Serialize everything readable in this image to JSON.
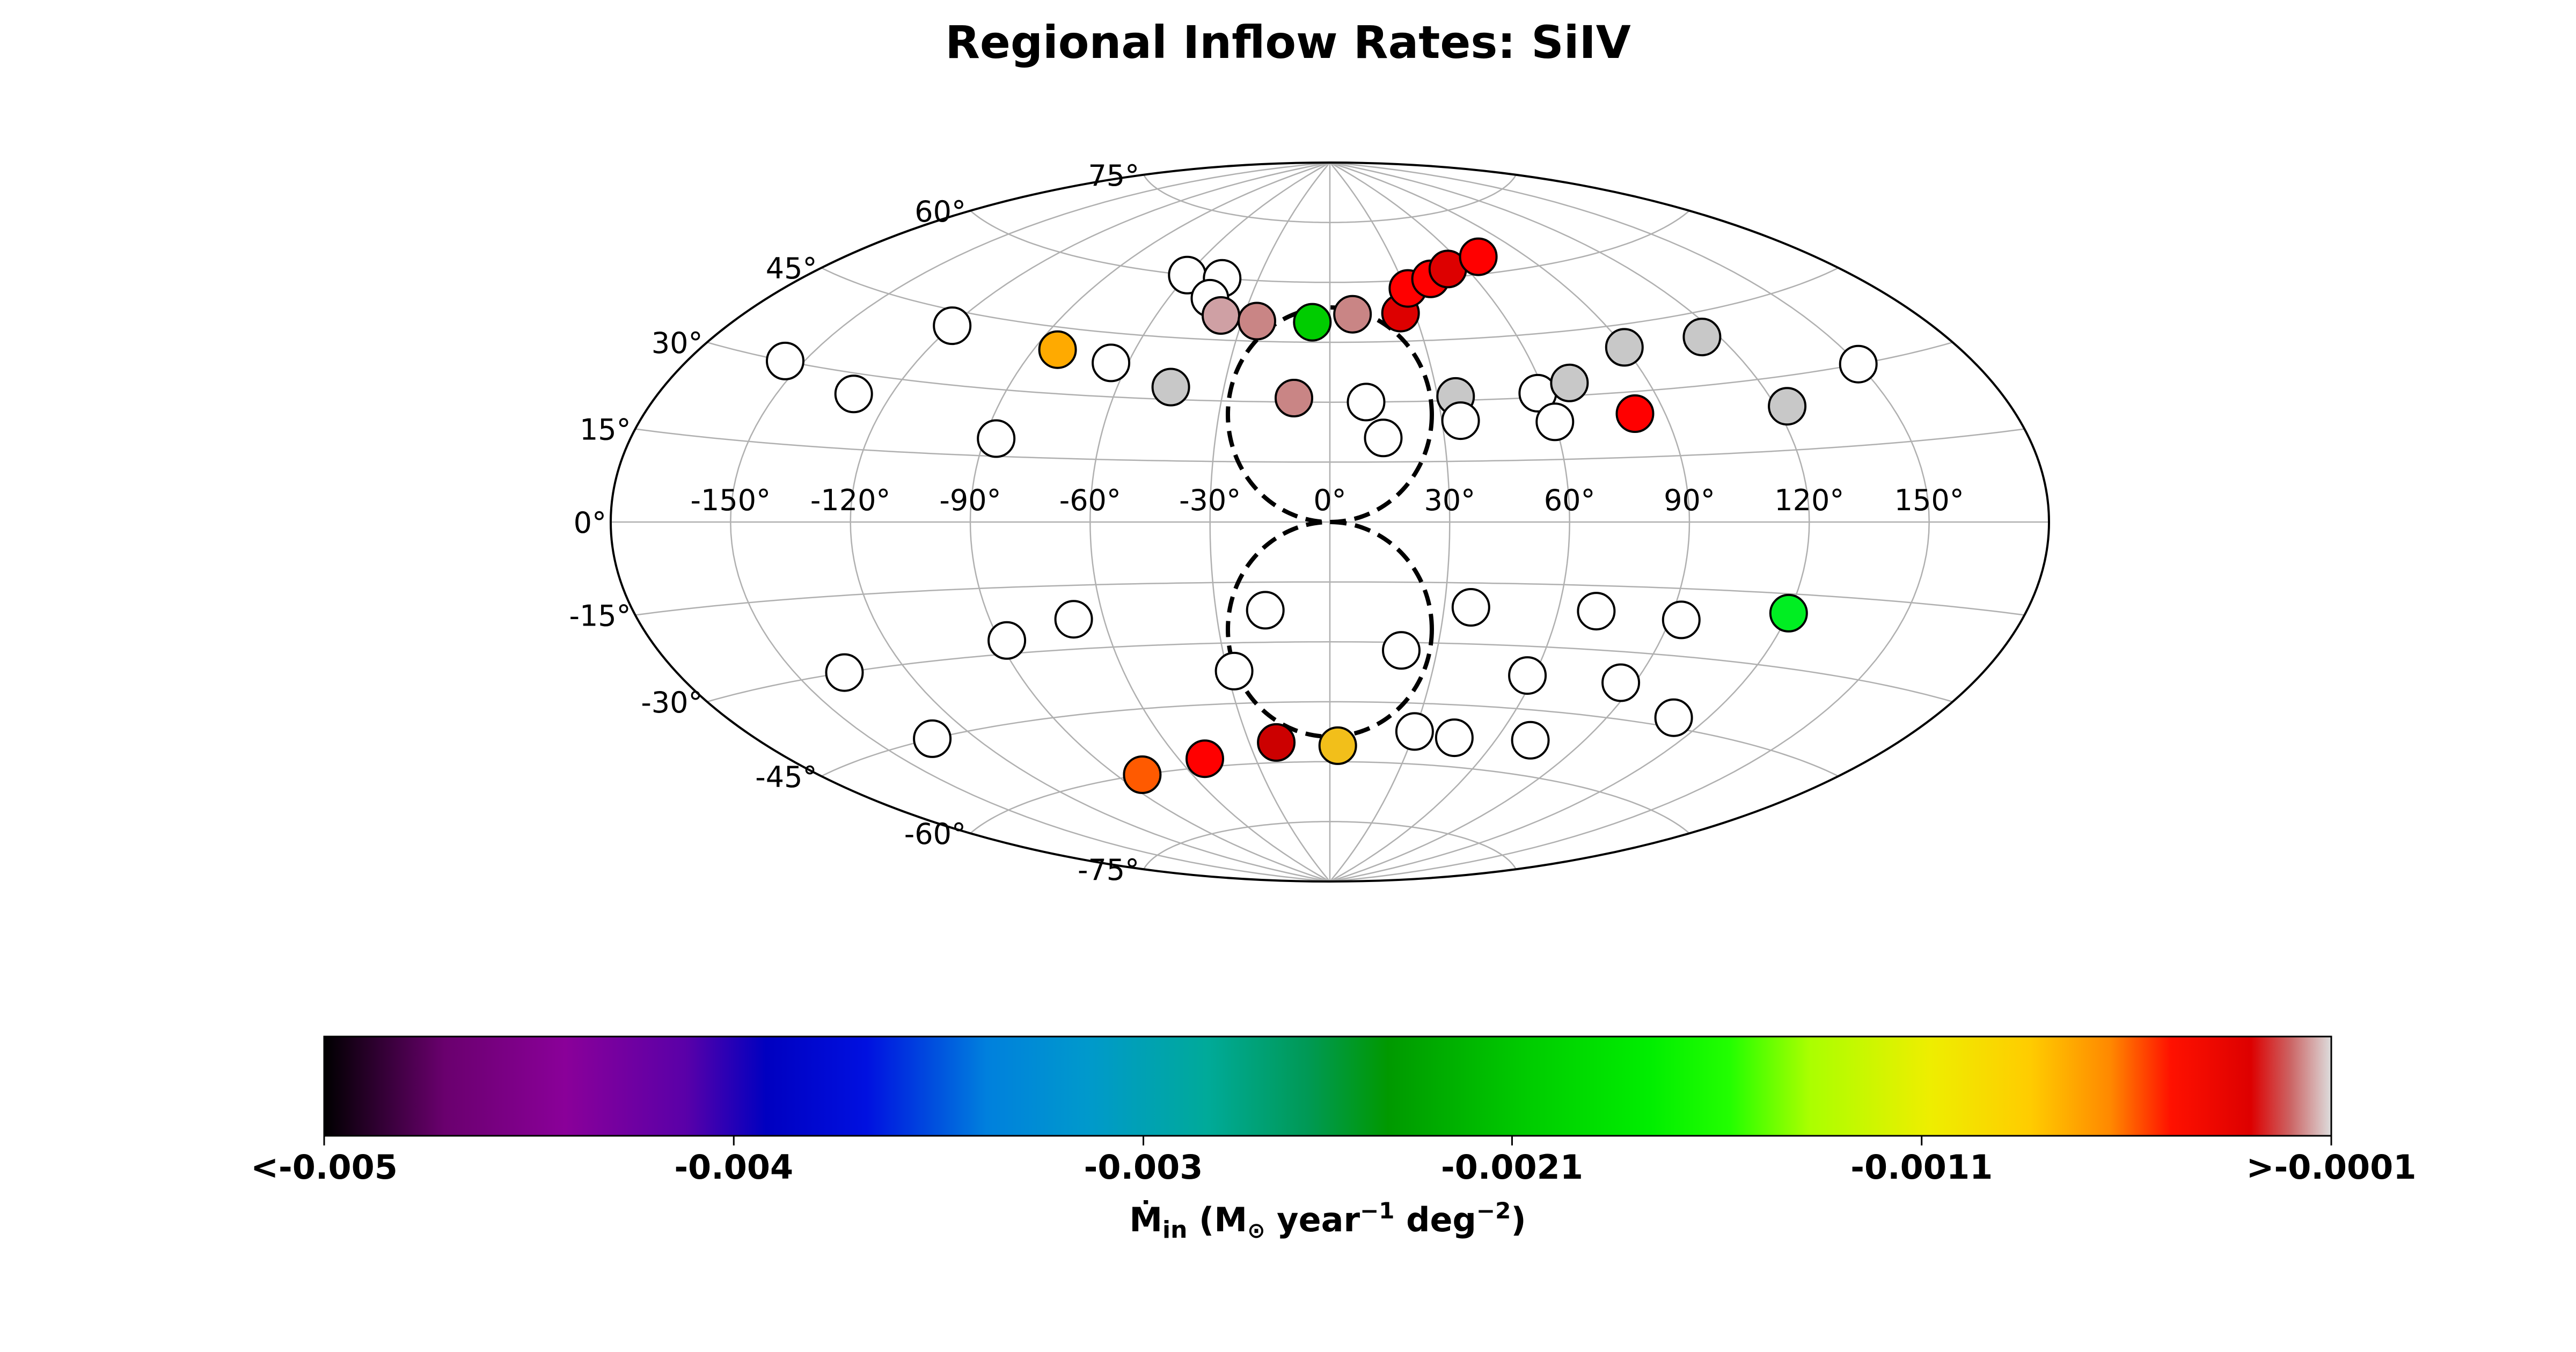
{
  "chart_data": {
    "type": "scatter",
    "projection": "aitoff",
    "title": "Regional Inflow Rates: SiIV",
    "lon_ticks": [
      "-150°",
      "-120°",
      "-90°",
      "-60°",
      "-30°",
      "0°",
      "30°",
      "60°",
      "90°",
      "120°",
      "150°"
    ],
    "lon_tick_values": [
      -150,
      -120,
      -90,
      -60,
      -30,
      0,
      30,
      60,
      90,
      120,
      150
    ],
    "lat_ticks": [
      "-75°",
      "-60°",
      "-45°",
      "-30°",
      "-15°",
      "0°",
      "15°",
      "30°",
      "45°",
      "60°",
      "75°"
    ],
    "lat_tick_values": [
      -75,
      -60,
      -45,
      -30,
      -15,
      0,
      15,
      30,
      45,
      60,
      75
    ],
    "grid": true,
    "lon_range": [
      -180,
      180
    ],
    "lat_range": [
      -90,
      90
    ],
    "points": [
      {
        "lon": -155,
        "lat": 30,
        "color": "#ffffff"
      },
      {
        "lon": -130,
        "lat": 26,
        "color": "#ffffff"
      },
      {
        "lon": -120,
        "lat": 42,
        "color": "#ffffff"
      },
      {
        "lon": -87,
        "lat": 19,
        "color": "#ffffff"
      },
      {
        "lon": -83,
        "lat": 40,
        "color": "#ffaa00"
      },
      {
        "lon": -65,
        "lat": 38,
        "color": "#ffffff"
      },
      {
        "lon": -45,
        "lat": 33,
        "color": "#c8c8c8"
      },
      {
        "lon": -60,
        "lat": 60,
        "color": "#ffffff"
      },
      {
        "lon": -45,
        "lat": 60,
        "color": "#ffffff"
      },
      {
        "lon": -45,
        "lat": 55,
        "color": "#ffffff"
      },
      {
        "lon": -38,
        "lat": 51,
        "color": "#cfa0a4"
      },
      {
        "lon": -25,
        "lat": 50,
        "color": "#c98585"
      },
      {
        "lon": -6,
        "lat": 50,
        "color": "#00cc00"
      },
      {
        "lon": 8,
        "lat": 52,
        "color": "#c98585"
      },
      {
        "lon": -10,
        "lat": 31,
        "color": "#c98585"
      },
      {
        "lon": 10,
        "lat": 30,
        "color": "#ffffff"
      },
      {
        "lon": 14,
        "lat": 21,
        "color": "#ffffff"
      },
      {
        "lon": 25,
        "lat": 52,
        "color": "#dd0000"
      },
      {
        "lon": 31,
        "lat": 58,
        "color": "#ff0000"
      },
      {
        "lon": 42,
        "lat": 60,
        "color": "#ff0000"
      },
      {
        "lon": 52,
        "lat": 62,
        "color": "#dd0000"
      },
      {
        "lon": 70,
        "lat": 64,
        "color": "#ff0000"
      },
      {
        "lon": 35,
        "lat": 31,
        "color": "#c8c8c8"
      },
      {
        "lon": 35,
        "lat": 25,
        "color": "#ffffff"
      },
      {
        "lon": 58,
        "lat": 31,
        "color": "#ffffff"
      },
      {
        "lon": 60,
        "lat": 24,
        "color": "#ffffff"
      },
      {
        "lon": 68,
        "lat": 33,
        "color": "#c8c8c8"
      },
      {
        "lon": 82,
        "lat": 25,
        "color": "#ff0000"
      },
      {
        "lon": 90,
        "lat": 40,
        "color": "#c8c8c8"
      },
      {
        "lon": 115,
        "lat": 40,
        "color": "#c8c8c8"
      },
      {
        "lon": 123,
        "lat": 24,
        "color": "#c8c8c8"
      },
      {
        "lon": 150,
        "lat": 30,
        "color": "#ffffff"
      },
      {
        "lon": -137,
        "lat": -30,
        "color": "#ffffff"
      },
      {
        "lon": -88,
        "lat": -27,
        "color": "#ffffff"
      },
      {
        "lon": -68,
        "lat": -23,
        "color": "#ffffff"
      },
      {
        "lon": -17,
        "lat": -22,
        "color": "#ffffff"
      },
      {
        "lon": -133,
        "lat": -45,
        "color": "#ffffff"
      },
      {
        "lon": -28,
        "lat": -37,
        "color": "#ffffff"
      },
      {
        "lon": 20,
        "lat": -32,
        "color": "#ffffff"
      },
      {
        "lon": 37,
        "lat": -21,
        "color": "#ffffff"
      },
      {
        "lon": 70,
        "lat": -21,
        "color": "#ffffff"
      },
      {
        "lon": 93,
        "lat": -22,
        "color": "#ffffff"
      },
      {
        "lon": 120,
        "lat": -19,
        "color": "#00ee22"
      },
      {
        "lon": 58,
        "lat": -37,
        "color": "#ffffff"
      },
      {
        "lon": 86,
        "lat": -37,
        "color": "#ffffff"
      },
      {
        "lon": 110,
        "lat": -43,
        "color": "#ffffff"
      },
      {
        "lon": -80,
        "lat": -60,
        "color": "#ff5a00"
      },
      {
        "lon": -50,
        "lat": -58,
        "color": "#ff0000"
      },
      {
        "lon": -20,
        "lat": -55,
        "color": "#cc0000"
      },
      {
        "lon": 3,
        "lat": -56,
        "color": "#f2bf1a"
      },
      {
        "lon": 30,
        "lat": -52,
        "color": "#ffffff"
      },
      {
        "lon": 45,
        "lat": -53,
        "color": "#ffffff"
      },
      {
        "lon": 72,
        "lat": -52,
        "color": "#ffffff"
      }
    ],
    "colorbar": {
      "tick_labels": [
        "<-0.005",
        "-0.004",
        "-0.003",
        "-0.0021",
        "-0.0011",
        ">-0.0001"
      ],
      "tick_values": [
        -0.005,
        -0.004,
        -0.003,
        -0.0021,
        -0.0011,
        -0.0001
      ],
      "vmin": -0.005,
      "vmax": -0.0001,
      "label_main": "Ṁ",
      "label_main_sub": "in",
      "label_unit_a": " (M",
      "label_unit_sub": "⊙",
      "label_unit_b": " year",
      "label_unit_sup1": "−1",
      "label_unit_c": " deg",
      "label_unit_sup2": "−2",
      "label_unit_d": ")",
      "stops": [
        {
          "value": 0.0,
          "color": "#000000"
        },
        {
          "value": 0.06,
          "color": "#6a006e"
        },
        {
          "value": 0.12,
          "color": "#8a0099"
        },
        {
          "value": 0.18,
          "color": "#5a00a8"
        },
        {
          "value": 0.22,
          "color": "#0000c0"
        },
        {
          "value": 0.27,
          "color": "#0010e0"
        },
        {
          "value": 0.33,
          "color": "#0080dd"
        },
        {
          "value": 0.38,
          "color": "#0099cc"
        },
        {
          "value": 0.44,
          "color": "#00aa99"
        },
        {
          "value": 0.49,
          "color": "#009955"
        },
        {
          "value": 0.53,
          "color": "#009900"
        },
        {
          "value": 0.6,
          "color": "#00cc00"
        },
        {
          "value": 0.66,
          "color": "#00ee00"
        },
        {
          "value": 0.7,
          "color": "#22ff00"
        },
        {
          "value": 0.74,
          "color": "#aaff00"
        },
        {
          "value": 0.8,
          "color": "#eeee00"
        },
        {
          "value": 0.85,
          "color": "#ffcc00"
        },
        {
          "value": 0.89,
          "color": "#ff8800"
        },
        {
          "value": 0.92,
          "color": "#ff1100"
        },
        {
          "value": 0.96,
          "color": "#dd0000"
        },
        {
          "value": 0.98,
          "color": "#cc6666"
        },
        {
          "value": 1.0,
          "color": "#dddddd"
        }
      ]
    }
  }
}
